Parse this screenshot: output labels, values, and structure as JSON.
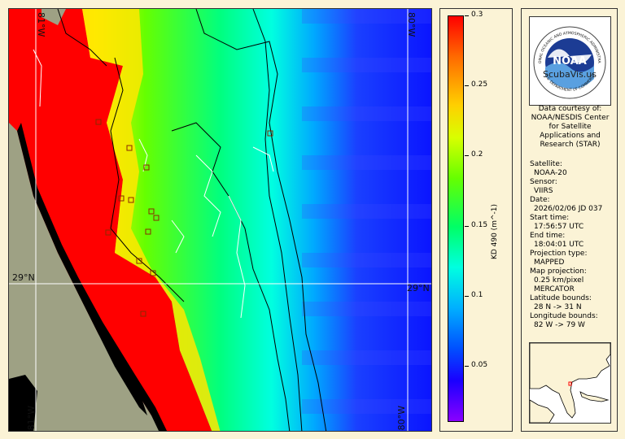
{
  "map": {
    "grid_labels": {
      "lon_top_left": "81°W",
      "lon_top_right": "80°W",
      "lon_bottom_left": "81°W",
      "lon_bottom_right": "80°W",
      "lat_left": "29°N",
      "lat_right": "29°N"
    }
  },
  "colorbar": {
    "label": "KD 490 (m^-1)",
    "ticks": [
      "0.3",
      "0.25",
      "0.2",
      "0.15",
      "0.1",
      "0.05"
    ],
    "tick_values": [
      0.3,
      0.25,
      0.2,
      0.15,
      0.1,
      0.05
    ],
    "range": [
      0.01,
      0.3
    ],
    "colors": [
      "#ff0000",
      "#ffd000",
      "#66ff00",
      "#00ffe0",
      "#0050ff",
      "#8a00ff"
    ]
  },
  "info": {
    "logo_text": "NOAA",
    "logo_ring_top": "NATIONAL OCEANIC AND ATMOSPHERIC ADMINISTRATION",
    "logo_ring_bottom": "U.S. DEPARTMENT OF COMMERCE",
    "watermark": "ScubaVis.us",
    "credit": [
      "Data courtesy of:",
      "NOAA/NESDIS Center",
      "for Satellite",
      "Applications and",
      "Research (STAR)"
    ],
    "fields": [
      {
        "label": "Satellite:",
        "value": "NOAA-20"
      },
      {
        "label": "Sensor:",
        "value": "VIIRS"
      },
      {
        "label": "Date:",
        "value": "2026/02/06 JD 037"
      },
      {
        "label": "Start time:",
        "value": "17:56:57 UTC"
      },
      {
        "label": "End time:",
        "value": "18:04:01 UTC"
      },
      {
        "label": "Projection type:",
        "value": "MAPPED"
      },
      {
        "label": "Map projection:",
        "value": "0.25 km/pixel"
      },
      {
        "label": "",
        "value": "MERCATOR"
      },
      {
        "label": "Latitude bounds:",
        "value": "28 N -> 31 N"
      },
      {
        "label": "Longitude bounds:",
        "value": "82 W -> 79 W"
      }
    ]
  }
}
